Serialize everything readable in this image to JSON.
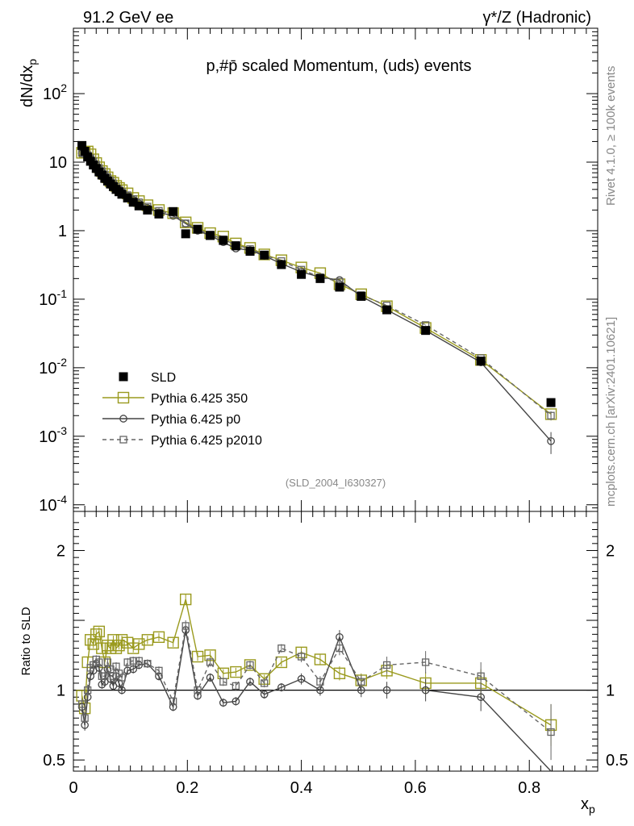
{
  "header": {
    "energy_label": "91.2 GeV ee",
    "process_label": "γ*/Z (Hadronic)",
    "plot_title": "p,#p̄ scaled Momentum, (uds) events",
    "analysis_id": "(SLD_2004_I630327)",
    "side_text_top": "Rivet 4.1.0, ≥ 100k events",
    "side_text_bottom": "mcplots.cern.ch [arXiv:2401.10621]"
  },
  "chart_data": [
    {
      "type": "scatter",
      "name": "main-panel",
      "yscale": "log",
      "xlim": [
        0,
        0.92
      ],
      "ylim": [
        8e-05,
        900
      ],
      "ylabel": "dN/dx_p",
      "y_ticks": [
        {
          "value": 100,
          "label": "10^2"
        },
        {
          "value": 10,
          "label": "10"
        },
        {
          "value": 1,
          "label": "1"
        },
        {
          "value": 0.1,
          "label": "10^-1"
        },
        {
          "value": 0.01,
          "label": "10^-2"
        },
        {
          "value": 0.001,
          "label": "10^-3"
        },
        {
          "value": 0.0001,
          "label": "10^-4"
        }
      ],
      "x": [
        0.015,
        0.02,
        0.025,
        0.03,
        0.035,
        0.04,
        0.045,
        0.05,
        0.055,
        0.06,
        0.065,
        0.07,
        0.075,
        0.08,
        0.085,
        0.095,
        0.105,
        0.115,
        0.13,
        0.15,
        0.175,
        0.197,
        0.218,
        0.24,
        0.263,
        0.285,
        0.31,
        0.335,
        0.365,
        0.4,
        0.433,
        0.467,
        0.505,
        0.55,
        0.618,
        0.715,
        0.838
      ],
      "legend": [
        {
          "name": "SLD",
          "color": "#000000"
        },
        {
          "name": "Pythia 6.425 350",
          "color": "#9a9a1e"
        },
        {
          "name": "Pythia 6.425 p0",
          "color": "#444444"
        },
        {
          "name": "Pythia 6.425 p2010",
          "color": "#666666"
        }
      ],
      "series": [
        {
          "name": "SLD",
          "color": "#000000",
          "marker": "filled-square",
          "values": [
            17.5,
            14.4,
            11.9,
            10.3,
            9.1,
            8.1,
            7.2,
            6.5,
            5.8,
            5.3,
            4.8,
            4.4,
            4.0,
            3.7,
            3.4,
            3.0,
            2.6,
            2.3,
            2.0,
            1.75,
            1.9,
            0.9,
            1.05,
            0.85,
            0.72,
            0.6,
            0.5,
            0.44,
            0.32,
            0.23,
            0.2,
            0.15,
            0.11,
            0.07,
            0.035,
            0.0125,
            0.0031
          ],
          "errors": [
            0.8,
            0.5,
            0.4,
            0.3,
            0.3,
            0.2,
            0.2,
            0.2,
            0.2,
            0.15,
            0.15,
            0.1,
            0.1,
            0.1,
            0.1,
            0.1,
            0.08,
            0.07,
            0.06,
            0.05,
            0.05,
            0.03,
            0.03,
            0.03,
            0.02,
            0.02,
            0.02,
            0.015,
            0.01,
            0.008,
            0.006,
            0.005,
            0.004,
            0.003,
            0.0015,
            0.0006,
            0.0003
          ]
        },
        {
          "name": "Pythia 6.425 350",
          "color": "#9a9a1e",
          "marker": "open-square",
          "line": "solid",
          "values": [
            13.7,
            14.0,
            14.3,
            13.0,
            11.0,
            9.7,
            8.4,
            7.4,
            6.7,
            6.0,
            5.3,
            5.0,
            4.5,
            4.2,
            3.9,
            3.5,
            3.0,
            2.7,
            2.35,
            2.0,
            1.8,
            1.32,
            1.1,
            0.92,
            0.82,
            0.65,
            0.56,
            0.45,
            0.37,
            0.29,
            0.24,
            0.165,
            0.118,
            0.079,
            0.038,
            0.013,
            0.0021
          ],
          "errors": [
            0.3,
            0.3,
            0.3,
            0.2,
            0.2,
            0.2,
            0.15,
            0.1,
            0.1,
            0.1,
            0.1,
            0.1,
            0.08,
            0.08,
            0.07,
            0.06,
            0.05,
            0.05,
            0.04,
            0.03,
            0.03,
            0.02,
            0.02,
            0.015,
            0.012,
            0.01,
            0.008,
            0.006,
            0.005,
            0.004,
            0.003,
            0.002,
            0.0015,
            0.001,
            0.0006,
            0.0003,
            0.0002
          ]
        },
        {
          "name": "Pythia 6.425 p0",
          "color": "#444444",
          "marker": "open-circle",
          "line": "solid",
          "values": [
            13.5,
            13.0,
            12.3,
            11.2,
            10.0,
            9.0,
            8.0,
            7.2,
            6.4,
            5.8,
            5.2,
            4.7,
            4.2,
            3.9,
            3.6,
            3.2,
            2.8,
            2.5,
            2.15,
            1.85,
            1.65,
            1.27,
            1.0,
            0.85,
            0.68,
            0.55,
            0.52,
            0.43,
            0.33,
            0.25,
            0.21,
            0.19,
            0.11,
            0.07,
            0.035,
            0.012,
            0.00085
          ],
          "errors": [
            0.3,
            0.3,
            0.3,
            0.2,
            0.2,
            0.2,
            0.15,
            0.1,
            0.1,
            0.1,
            0.1,
            0.1,
            0.08,
            0.08,
            0.07,
            0.06,
            0.05,
            0.05,
            0.04,
            0.03,
            0.03,
            0.02,
            0.02,
            0.015,
            0.012,
            0.01,
            0.008,
            0.006,
            0.005,
            0.004,
            0.003,
            0.003,
            0.0015,
            0.001,
            0.0006,
            0.0004,
            0.0003
          ]
        },
        {
          "name": "Pythia 6.425 p2010",
          "color": "#666666",
          "marker": "open-square-small",
          "line": "dashed",
          "values": [
            13.6,
            13.2,
            12.7,
            11.5,
            10.3,
            9.2,
            8.2,
            7.4,
            6.6,
            6.0,
            5.4,
            4.9,
            4.4,
            4.0,
            3.7,
            3.3,
            2.9,
            2.6,
            2.25,
            1.95,
            1.75,
            1.28,
            1.05,
            0.88,
            0.75,
            0.62,
            0.54,
            0.44,
            0.36,
            0.27,
            0.21,
            0.18,
            0.115,
            0.081,
            0.042,
            0.0138,
            0.002
          ],
          "errors": [
            0.3,
            0.3,
            0.3,
            0.2,
            0.2,
            0.2,
            0.15,
            0.1,
            0.1,
            0.1,
            0.1,
            0.1,
            0.08,
            0.08,
            0.07,
            0.06,
            0.05,
            0.05,
            0.04,
            0.03,
            0.03,
            0.02,
            0.02,
            0.015,
            0.012,
            0.01,
            0.008,
            0.006,
            0.005,
            0.004,
            0.003,
            0.003,
            0.0015,
            0.001,
            0.0006,
            0.0004,
            0.0003
          ]
        }
      ]
    },
    {
      "type": "line",
      "name": "ratio-panel",
      "xlim": [
        0,
        0.92
      ],
      "ylim": [
        0.42,
        2.28
      ],
      "xlabel": "x_p",
      "ylabel": "Ratio to SLD",
      "x_ticks": [
        {
          "value": 0,
          "label": "0"
        },
        {
          "value": 0.2,
          "label": "0.2"
        },
        {
          "value": 0.4,
          "label": "0.4"
        },
        {
          "value": 0.6,
          "label": "0.6"
        },
        {
          "value": 0.8,
          "label": "0.8"
        }
      ],
      "y_ticks": [
        {
          "value": 0.5,
          "label": "0.5"
        },
        {
          "value": 1,
          "label": "1"
        },
        {
          "value": 2,
          "label": "2"
        }
      ],
      "reference_line": 1,
      "x": [
        0.015,
        0.02,
        0.025,
        0.03,
        0.035,
        0.04,
        0.045,
        0.05,
        0.055,
        0.06,
        0.065,
        0.07,
        0.075,
        0.08,
        0.085,
        0.095,
        0.105,
        0.115,
        0.13,
        0.15,
        0.175,
        0.197,
        0.218,
        0.24,
        0.263,
        0.285,
        0.31,
        0.335,
        0.365,
        0.4,
        0.433,
        0.467,
        0.505,
        0.55,
        0.618,
        0.715,
        0.838
      ],
      "series": [
        {
          "name": "Pythia 6.425 350",
          "color": "#9a9a1e",
          "marker": "open-square",
          "line": "solid",
          "values": [
            0.96,
            0.87,
            1.2,
            1.36,
            1.33,
            1.4,
            1.42,
            1.3,
            1.2,
            1.32,
            1.3,
            1.36,
            1.3,
            1.32,
            1.36,
            1.34,
            1.3,
            1.33,
            1.36,
            1.38,
            1.34,
            1.65,
            1.24,
            1.25,
            1.12,
            1.13,
            1.18,
            1.08,
            1.2,
            1.27,
            1.22,
            1.12,
            1.07,
            1.14,
            1.05,
            1.05,
            0.75
          ],
          "errors": [
            0.04,
            0.04,
            0.04,
            0.03,
            0.03,
            0.03,
            0.03,
            0.03,
            0.03,
            0.03,
            0.03,
            0.03,
            0.03,
            0.03,
            0.03,
            0.03,
            0.03,
            0.03,
            0.03,
            0.03,
            0.03,
            0.04,
            0.03,
            0.03,
            0.03,
            0.03,
            0.03,
            0.03,
            0.03,
            0.04,
            0.04,
            0.05,
            0.05,
            0.06,
            0.08,
            0.1,
            0.15
          ]
        },
        {
          "name": "Pythia 6.425 p0",
          "color": "#444444",
          "marker": "open-circle",
          "line": "solid",
          "values": [
            0.88,
            0.75,
            0.95,
            1.1,
            1.14,
            1.19,
            1.16,
            1.04,
            1.06,
            1.15,
            1.08,
            1.03,
            1.1,
            1.05,
            1.0,
            1.14,
            1.15,
            1.18,
            1.19,
            1.1,
            0.88,
            1.43,
            0.96,
            1.09,
            0.91,
            0.92,
            1.06,
            0.97,
            1.02,
            1.08,
            1.0,
            1.38,
            1.0,
            1.0,
            1.0,
            0.95,
            0.0
          ],
          "errors": [
            0.04,
            0.04,
            0.04,
            0.03,
            0.03,
            0.03,
            0.03,
            0.03,
            0.03,
            0.03,
            0.03,
            0.03,
            0.03,
            0.03,
            0.03,
            0.03,
            0.03,
            0.03,
            0.03,
            0.03,
            0.03,
            0.04,
            0.03,
            0.03,
            0.03,
            0.03,
            0.03,
            0.03,
            0.03,
            0.04,
            0.04,
            0.05,
            0.05,
            0.06,
            0.08,
            0.1,
            0.15
          ]
        },
        {
          "name": "Pythia 6.425 p2010",
          "color": "#666666",
          "marker": "open-square-small",
          "line": "dashed",
          "values": [
            0.9,
            0.8,
            1.0,
            1.16,
            1.18,
            1.22,
            1.2,
            1.1,
            1.1,
            1.2,
            1.15,
            1.1,
            1.17,
            1.12,
            1.09,
            1.2,
            1.21,
            1.21,
            1.19,
            1.14,
            0.92,
            1.46,
            1.0,
            1.2,
            1.06,
            1.03,
            1.18,
            1.05,
            1.3,
            1.24,
            1.06,
            1.3,
            1.06,
            1.18,
            1.2,
            1.1,
            0.7
          ],
          "errors": [
            0.04,
            0.04,
            0.04,
            0.03,
            0.03,
            0.03,
            0.03,
            0.03,
            0.03,
            0.03,
            0.03,
            0.03,
            0.03,
            0.03,
            0.03,
            0.03,
            0.03,
            0.03,
            0.03,
            0.03,
            0.03,
            0.04,
            0.03,
            0.03,
            0.03,
            0.03,
            0.03,
            0.03,
            0.03,
            0.04,
            0.04,
            0.05,
            0.05,
            0.06,
            0.08,
            0.1,
            0.2
          ]
        }
      ]
    }
  ]
}
